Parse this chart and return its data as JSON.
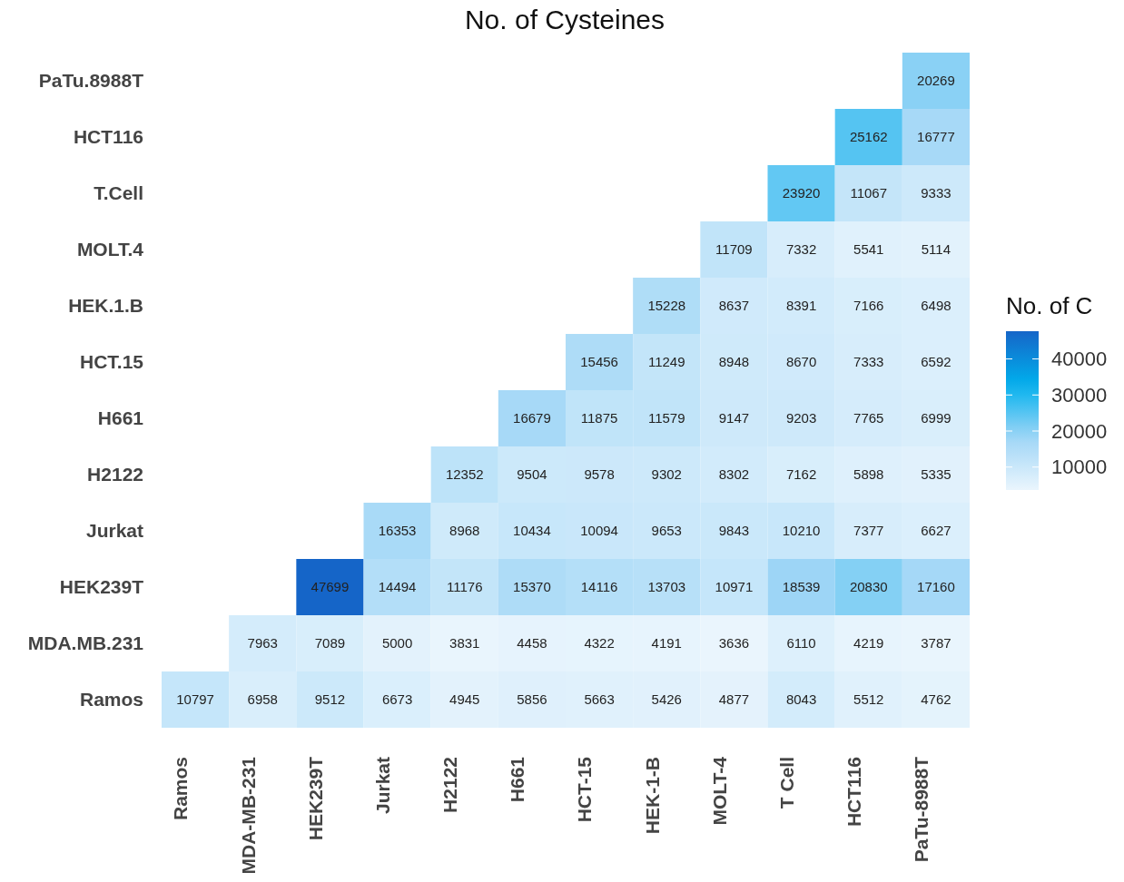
{
  "chart_data": {
    "type": "heatmap",
    "title": "No. of Cysteines",
    "legend_title": "No. of C",
    "categories": [
      "Ramos",
      "MDA-MB-231",
      "HEK239T",
      "Jurkat",
      "H2122",
      "H661",
      "HCT-15",
      "HEK-1-B",
      "MOLT-4",
      "T Cell",
      "HCT116",
      "PaTu-8988T"
    ],
    "y_categories": [
      "PaTu.8988T",
      "HCT116",
      "T.Cell",
      "MOLT.4",
      "HEK.1.B",
      "HCT.15",
      "H661",
      "H2122",
      "Jurkat",
      "HEK239T",
      "MDA.MB.231",
      "Ramos"
    ],
    "cells": [
      [
        null,
        null,
        null,
        null,
        null,
        null,
        null,
        null,
        null,
        null,
        null,
        20269
      ],
      [
        null,
        null,
        null,
        null,
        null,
        null,
        null,
        null,
        null,
        null,
        25162,
        16777
      ],
      [
        null,
        null,
        null,
        null,
        null,
        null,
        null,
        null,
        null,
        23920,
        11067,
        9333
      ],
      [
        null,
        null,
        null,
        null,
        null,
        null,
        null,
        null,
        11709,
        7332,
        5541,
        5114
      ],
      [
        null,
        null,
        null,
        null,
        null,
        null,
        null,
        15228,
        8637,
        8391,
        7166,
        6498
      ],
      [
        null,
        null,
        null,
        null,
        null,
        null,
        15456,
        11249,
        8948,
        8670,
        7333,
        6592
      ],
      [
        null,
        null,
        null,
        null,
        null,
        16679,
        11875,
        11579,
        9147,
        9203,
        7765,
        6999
      ],
      [
        null,
        null,
        null,
        null,
        12352,
        9504,
        9578,
        9302,
        8302,
        7162,
        5898,
        5335
      ],
      [
        null,
        null,
        null,
        16353,
        8968,
        10434,
        10094,
        9653,
        9843,
        10210,
        7377,
        6627
      ],
      [
        null,
        null,
        47699,
        14494,
        11176,
        15370,
        14116,
        13703,
        10971,
        18539,
        20830,
        17160
      ],
      [
        null,
        7963,
        7089,
        5000,
        3831,
        4458,
        4322,
        4191,
        3636,
        6110,
        4219,
        3787
      ],
      [
        10797,
        6958,
        9512,
        6673,
        4945,
        5856,
        5663,
        5426,
        4877,
        8043,
        5512,
        4762
      ]
    ],
    "clim": [
      3636,
      47699
    ],
    "cticks": [
      10000,
      20000,
      30000,
      40000
    ],
    "data_labels": true
  }
}
